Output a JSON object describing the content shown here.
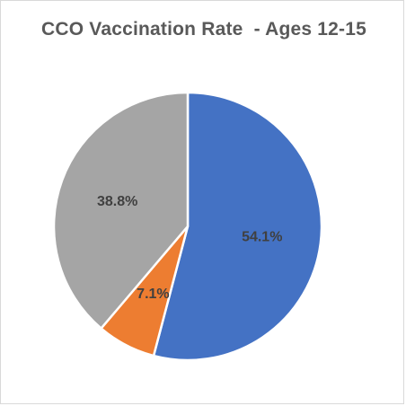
{
  "chart_data": {
    "type": "pie",
    "title": "CCO Vaccination Rate  - Ages 12-15",
    "slices": [
      {
        "label": "54.1%",
        "value": 54.1,
        "color": "#4472C4"
      },
      {
        "label": "7.1%",
        "value": 7.1,
        "color": "#ED7D31"
      },
      {
        "label": "38.8%",
        "value": 38.8,
        "color": "#A5A5A5"
      }
    ],
    "legend": "none",
    "start_angle": "12 o'clock, clockwise"
  }
}
